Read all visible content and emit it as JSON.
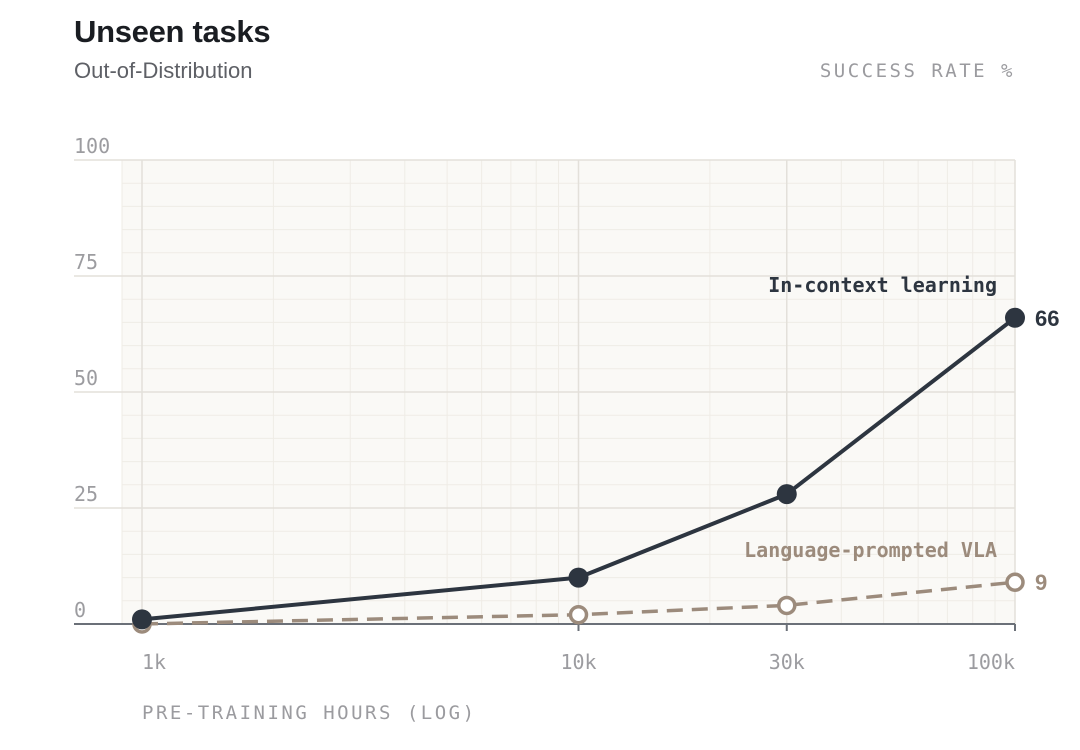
{
  "chart_data": {
    "type": "line",
    "title": "Unseen tasks",
    "subtitle": "Out-of-Distribution",
    "ylabel": "SUCCESS RATE %",
    "xlabel": "PRE-TRAINING HOURS (LOG)",
    "xscale": "log",
    "ylim": [
      0,
      100
    ],
    "xlim": [
      1000,
      100000
    ],
    "yticks": [
      {
        "value": 0,
        "label": "0"
      },
      {
        "value": 25,
        "label": "25"
      },
      {
        "value": 50,
        "label": "50"
      },
      {
        "value": 75,
        "label": "75"
      },
      {
        "value": 100,
        "label": "100"
      }
    ],
    "xticks": [
      {
        "value": 1000,
        "label": "1k"
      },
      {
        "value": 10000,
        "label": "10k"
      },
      {
        "value": 30000,
        "label": "30k"
      },
      {
        "value": 100000,
        "label": "100k"
      }
    ],
    "grid": true,
    "series": [
      {
        "name": "In-context learning",
        "color": "#2d3540",
        "style": "solid",
        "marker": "filled-circle",
        "x": [
          1000,
          10000,
          30000,
          100000
        ],
        "y": [
          1,
          10,
          28,
          66
        ],
        "end_label": "66"
      },
      {
        "name": "Language-prompted VLA",
        "color": "#9c8b7c",
        "style": "dashed",
        "marker": "open-circle",
        "x": [
          1000,
          10000,
          30000,
          100000
        ],
        "y": [
          0,
          2,
          4,
          9
        ],
        "end_label": "9"
      }
    ]
  }
}
